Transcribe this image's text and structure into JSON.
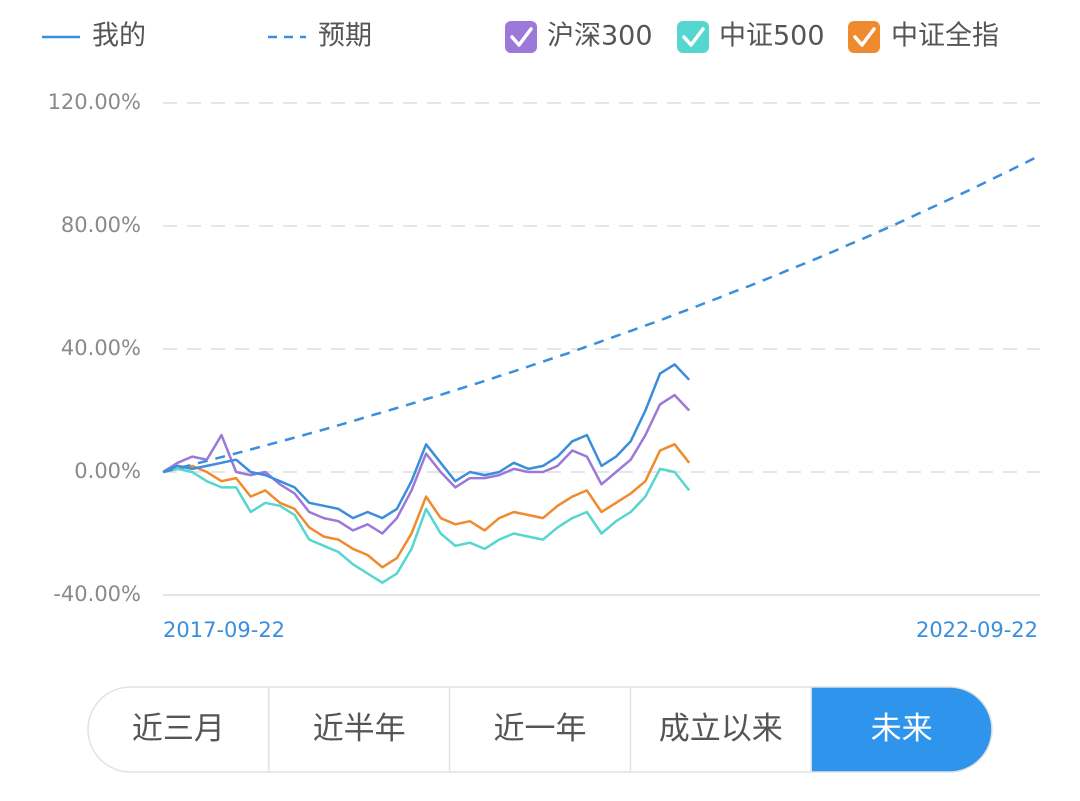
{
  "chart_data": {
    "type": "line",
    "categories": [
      "2017-09-22",
      null,
      null,
      null,
      null,
      null,
      null,
      null,
      null,
      null,
      null,
      null,
      null,
      null,
      null,
      null,
      null,
      null,
      null,
      null,
      null,
      null,
      null,
      null,
      null,
      null,
      null,
      null,
      null,
      null,
      null,
      null,
      null,
      null,
      null,
      null,
      null,
      null,
      null,
      null,
      null,
      null,
      null,
      null,
      null,
      null,
      null,
      null,
      null,
      null,
      null,
      null,
      null,
      null,
      null,
      null,
      null,
      null,
      null,
      null,
      "2022-09-22"
    ],
    "ylim": [
      -40,
      120
    ],
    "yticks": [
      {
        "value": -40,
        "label": "-40.00%"
      },
      {
        "value": 0,
        "label": "0.00%"
      },
      {
        "value": 40,
        "label": "40.00%"
      },
      {
        "value": 80,
        "label": "80.00%"
      },
      {
        "value": 120,
        "label": "120.00%"
      }
    ],
    "grid": true,
    "series": [
      {
        "name": "我的",
        "color": "#3a8edb",
        "dash": false,
        "legend": "line",
        "values": [
          0,
          2,
          1,
          2,
          3,
          4,
          0,
          -1,
          -3,
          -5,
          -10,
          -11,
          -12,
          -15,
          -13,
          -15,
          -12,
          -3,
          9,
          3,
          -3,
          0,
          -1,
          0,
          3,
          1,
          2,
          5,
          10,
          12,
          2,
          5,
          10,
          20,
          32,
          35,
          30,
          null,
          null,
          null,
          null,
          null,
          null,
          null,
          null,
          null,
          null,
          null,
          null,
          null,
          null,
          null,
          null,
          null,
          null,
          null,
          null,
          null,
          null,
          null,
          null
        ]
      },
      {
        "name": "预期",
        "color": "#3a8edb",
        "dash": true,
        "legend": "line",
        "values": [
          0,
          1.19,
          2.38,
          3.6,
          4.83,
          6.07,
          7.33,
          8.61,
          9.89,
          11.2,
          12.5,
          13.8,
          15.2,
          16.6,
          18,
          19.4,
          20.8,
          22.2,
          23.7,
          25.1,
          26.6,
          28.1,
          29.6,
          31.2,
          32.7,
          34.3,
          35.9,
          37.5,
          39.1,
          40.8,
          42.5,
          44.2,
          45.9,
          47.6,
          49.3,
          51.2,
          52.9,
          54.8,
          56.6,
          58.5,
          60.3,
          62.2,
          64.1,
          66.1,
          68,
          70,
          72,
          74.1,
          76.1,
          78.2,
          80.3,
          82.5,
          84.7,
          86.9,
          89.1,
          91.3,
          93.6,
          95.9,
          98.2,
          100.6,
          103
        ]
      },
      {
        "name": "沪深300",
        "color": "#9c78d9",
        "dash": false,
        "legend": "checkbox",
        "values": [
          0,
          3,
          5,
          4,
          12,
          0,
          -1,
          0,
          -4,
          -7,
          -13,
          -15,
          -16,
          -19,
          -17,
          -20,
          -15,
          -6,
          6,
          0,
          -5,
          -2,
          -2,
          -1,
          1,
          0,
          0,
          2,
          7,
          5,
          -4,
          0,
          4,
          12,
          22,
          25,
          20,
          null,
          null,
          null,
          null,
          null,
          null,
          null,
          null,
          null,
          null,
          null,
          null,
          null,
          null,
          null,
          null,
          null,
          null,
          null,
          null,
          null,
          null,
          null,
          null
        ]
      },
      {
        "name": "中证500",
        "color": "#55d6cf",
        "dash": false,
        "legend": "checkbox",
        "values": [
          0,
          1,
          0,
          -3,
          -5,
          -5,
          -13,
          -10,
          -11,
          -14,
          -22,
          -24,
          -26,
          -30,
          -33,
          -36,
          -33,
          -25,
          -12,
          -20,
          -24,
          -23,
          -25,
          -22,
          -20,
          -21,
          -22,
          -18,
          -15,
          -13,
          -20,
          -16,
          -13,
          -8,
          1,
          0,
          -6,
          null,
          null,
          null,
          null,
          null,
          null,
          null,
          null,
          null,
          null,
          null,
          null,
          null,
          null,
          null,
          null,
          null,
          null,
          null,
          null,
          null,
          null,
          null,
          null
        ]
      },
      {
        "name": "中证全指",
        "color": "#f08a2e",
        "dash": false,
        "legend": "checkbox",
        "values": [
          0,
          1,
          2,
          0,
          -3,
          -2,
          -8,
          -6,
          -10,
          -12,
          -18,
          -21,
          -22,
          -25,
          -27,
          -31,
          -28,
          -20,
          -8,
          -15,
          -17,
          -16,
          -19,
          -15,
          -13,
          -14,
          -15,
          -11,
          -8,
          -6,
          -13,
          -10,
          -7,
          -3,
          7,
          9,
          3,
          null,
          null,
          null,
          null,
          null,
          null,
          null,
          null,
          null,
          null,
          null,
          null,
          null,
          null,
          null,
          null,
          null,
          null,
          null,
          null,
          null,
          null,
          null,
          null
        ]
      }
    ]
  },
  "controls": {
    "ranges": [
      "近三月",
      "近半年",
      "近一年",
      "成立以来",
      "未来"
    ],
    "selected": 4
  }
}
